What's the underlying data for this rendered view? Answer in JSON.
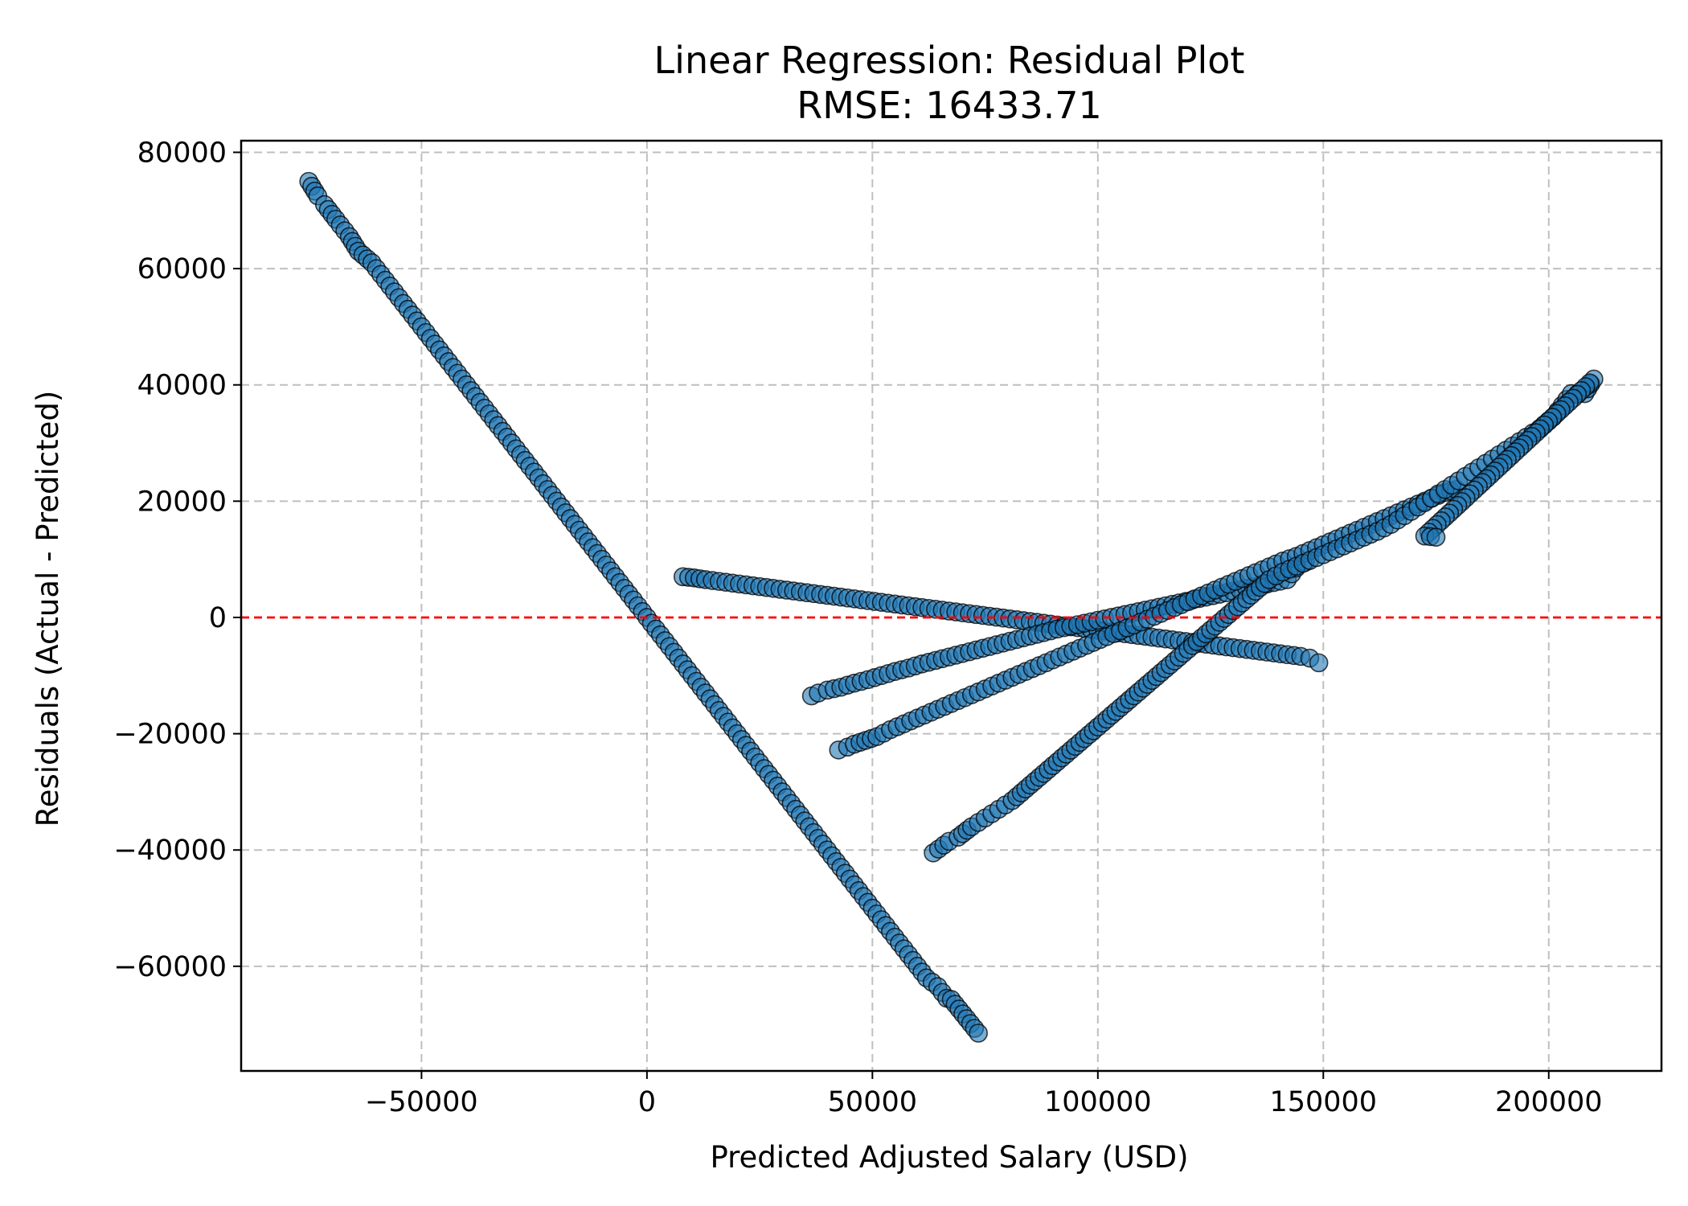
{
  "chart_data": {
    "type": "scatter",
    "title": "Linear Regression: Residual Plot",
    "subtitle": "RMSE: 16433.71",
    "xlabel": "Predicted Adjusted Salary (USD)",
    "ylabel": "Residuals (Actual - Predicted)",
    "xlim": [
      -90000,
      225000
    ],
    "ylim": [
      -78000,
      82000
    ],
    "xticks": [
      -50000,
      0,
      50000,
      100000,
      150000,
      200000
    ],
    "xtick_labels": [
      "−50000",
      "0",
      "50000",
      "100000",
      "150000",
      "200000"
    ],
    "yticks": [
      -60000,
      -40000,
      -20000,
      0,
      20000,
      40000,
      60000,
      80000
    ],
    "ytick_labels": [
      "−60000",
      "−40000",
      "−20000",
      "0",
      "20000",
      "40000",
      "60000",
      "80000"
    ],
    "grid": true,
    "reference_line": {
      "y": 0,
      "color": "#ff0000",
      "style": "dashed"
    },
    "marker_color": "#1f77b4",
    "series": [
      {
        "values": [
          [
            -75000,
            75000
          ],
          [
            -73000,
            72500
          ],
          [
            -71500,
            71000
          ],
          [
            -69000,
            68500
          ],
          [
            -68000,
            67500
          ],
          [
            -66000,
            65500
          ],
          [
            -64000,
            63000
          ],
          [
            -61000,
            61000
          ],
          [
            -58000,
            58000
          ],
          [
            -55000,
            55000
          ],
          [
            -52000,
            52000
          ],
          [
            -49000,
            49000
          ],
          [
            -46000,
            46000
          ],
          [
            -43000,
            43000
          ],
          [
            -40000,
            40000
          ],
          [
            -37000,
            37000
          ],
          [
            -34000,
            34000
          ],
          [
            -31000,
            31000
          ],
          [
            -28000,
            28000
          ],
          [
            -25000,
            25000
          ],
          [
            -22000,
            22000
          ],
          [
            -19000,
            19000
          ],
          [
            -16000,
            16000
          ],
          [
            -13000,
            13000
          ],
          [
            -10000,
            10000
          ],
          [
            -7000,
            7000
          ],
          [
            -4000,
            4000
          ],
          [
            -1000,
            1000
          ],
          [
            2000,
            -2000
          ],
          [
            5000,
            -5000
          ],
          [
            8000,
            -8000
          ],
          [
            11000,
            -11000
          ],
          [
            14000,
            -14000
          ],
          [
            17000,
            -17000
          ],
          [
            20000,
            -20000
          ],
          [
            23000,
            -23000
          ],
          [
            26000,
            -26000
          ],
          [
            29000,
            -29000
          ],
          [
            32000,
            -32000
          ],
          [
            35000,
            -35000
          ],
          [
            38000,
            -38000
          ],
          [
            41000,
            -41000
          ],
          [
            44000,
            -44000
          ],
          [
            47000,
            -47000
          ],
          [
            50000,
            -50000
          ],
          [
            53000,
            -53000
          ],
          [
            56000,
            -56000
          ],
          [
            59000,
            -59000
          ],
          [
            62000,
            -62000
          ],
          [
            64500,
            -63500
          ],
          [
            66500,
            -65500
          ],
          [
            67500,
            -65700
          ],
          [
            73500,
            -71500
          ]
        ]
      },
      {
        "values": [
          [
            8000,
            7000
          ],
          [
            10500,
            6800
          ],
          [
            13000,
            6500
          ],
          [
            16000,
            6200
          ],
          [
            19000,
            5900
          ],
          [
            22000,
            5600
          ],
          [
            25000,
            5300
          ],
          [
            28000,
            5000
          ],
          [
            31000,
            4700
          ],
          [
            34000,
            4400
          ],
          [
            37000,
            4100
          ],
          [
            40000,
            3800
          ],
          [
            43000,
            3500
          ],
          [
            46000,
            3200
          ],
          [
            49000,
            2900
          ],
          [
            52000,
            2600
          ],
          [
            55000,
            2300
          ],
          [
            58000,
            2000
          ],
          [
            61000,
            1700
          ],
          [
            64000,
            1400
          ],
          [
            67000,
            1100
          ],
          [
            70000,
            800
          ],
          [
            73000,
            500
          ],
          [
            76000,
            200
          ],
          [
            79000,
            -100
          ],
          [
            82000,
            -400
          ],
          [
            85000,
            -700
          ],
          [
            88000,
            -1000
          ],
          [
            91000,
            -1300
          ],
          [
            94000,
            -1600
          ],
          [
            97000,
            -1900
          ],
          [
            100000,
            -2200
          ],
          [
            103000,
            -2500
          ],
          [
            106000,
            -2800
          ],
          [
            109000,
            -3100
          ],
          [
            112000,
            -3400
          ],
          [
            115000,
            -3700
          ],
          [
            118000,
            -4000
          ],
          [
            121000,
            -4300
          ],
          [
            124000,
            -4600
          ],
          [
            127000,
            -4900
          ],
          [
            130000,
            -5200
          ],
          [
            133000,
            -5500
          ],
          [
            136000,
            -5800
          ],
          [
            139000,
            -6100
          ],
          [
            142000,
            -6400
          ],
          [
            145000,
            -6700
          ],
          [
            147000,
            -7000
          ],
          [
            149000,
            -7800
          ]
        ]
      },
      {
        "values": [
          [
            36500,
            -13500
          ],
          [
            38000,
            -13000
          ],
          [
            40000,
            -12500
          ],
          [
            43000,
            -12000
          ],
          [
            46000,
            -11300
          ],
          [
            49000,
            -10700
          ],
          [
            52000,
            -10000
          ],
          [
            55000,
            -9300
          ],
          [
            58000,
            -8700
          ],
          [
            61000,
            -8000
          ],
          [
            64000,
            -7400
          ],
          [
            67000,
            -6800
          ],
          [
            70000,
            -6200
          ],
          [
            73000,
            -5600
          ],
          [
            76000,
            -5000
          ],
          [
            79000,
            -4400
          ],
          [
            82000,
            -3800
          ],
          [
            85000,
            -3200
          ],
          [
            88000,
            -2600
          ],
          [
            91000,
            -2000
          ],
          [
            94000,
            -1500
          ],
          [
            97000,
            -1000
          ],
          [
            100000,
            -500
          ],
          [
            103000,
            0
          ],
          [
            106000,
            500
          ],
          [
            109000,
            1000
          ],
          [
            112000,
            1500
          ],
          [
            115000,
            2000
          ],
          [
            118000,
            2500
          ],
          [
            121000,
            3000
          ],
          [
            124000,
            3500
          ],
          [
            127000,
            4000
          ],
          [
            130000,
            4500
          ],
          [
            133000,
            5000
          ],
          [
            136000,
            5500
          ],
          [
            139000,
            6000
          ],
          [
            142000,
            6500
          ],
          [
            144000,
            8500
          ],
          [
            146000,
            9500
          ]
        ]
      },
      {
        "values": [
          [
            42500,
            -22800
          ],
          [
            44500,
            -22300
          ],
          [
            46000,
            -21800
          ],
          [
            51000,
            -20500
          ],
          [
            54000,
            -19300
          ],
          [
            57000,
            -18300
          ],
          [
            60000,
            -17300
          ],
          [
            63000,
            -16300
          ],
          [
            66000,
            -15300
          ],
          [
            69000,
            -14300
          ],
          [
            72000,
            -13300
          ],
          [
            75000,
            -12300
          ],
          [
            78000,
            -11300
          ],
          [
            81000,
            -10300
          ],
          [
            84000,
            -9300
          ],
          [
            87000,
            -8300
          ],
          [
            90000,
            -7300
          ],
          [
            93000,
            -6300
          ],
          [
            96000,
            -5300
          ],
          [
            99000,
            -4300
          ],
          [
            102000,
            -3300
          ],
          [
            105000,
            -2300
          ],
          [
            108000,
            -1300
          ],
          [
            111000,
            -300
          ],
          [
            114000,
            700
          ],
          [
            117000,
            1700
          ],
          [
            120000,
            2700
          ],
          [
            123000,
            3700
          ],
          [
            126000,
            4700
          ],
          [
            129000,
            5700
          ],
          [
            132000,
            6700
          ],
          [
            135000,
            7700
          ],
          [
            138000,
            8700
          ],
          [
            141000,
            9700
          ],
          [
            144000,
            10500
          ],
          [
            147000,
            11500
          ],
          [
            150000,
            12500
          ],
          [
            153000,
            13500
          ],
          [
            156000,
            14500
          ],
          [
            159000,
            15500
          ],
          [
            162000,
            16500
          ],
          [
            165000,
            17500
          ],
          [
            168000,
            18500
          ],
          [
            171000,
            19500
          ],
          [
            174000,
            20500
          ],
          [
            177000,
            21500
          ],
          [
            179500,
            22000
          ]
        ]
      },
      {
        "values": [
          [
            63500,
            -40500
          ],
          [
            67000,
            -38500
          ],
          [
            69000,
            -37800
          ],
          [
            72000,
            -36000
          ],
          [
            75000,
            -34500
          ],
          [
            78000,
            -33000
          ],
          [
            81000,
            -31500
          ],
          [
            84000,
            -29500
          ],
          [
            87000,
            -27500
          ],
          [
            90000,
            -25500
          ],
          [
            93000,
            -23500
          ],
          [
            96000,
            -21500
          ],
          [
            99000,
            -19500
          ],
          [
            102000,
            -17500
          ],
          [
            105000,
            -15500
          ],
          [
            108000,
            -13500
          ],
          [
            111000,
            -11500
          ],
          [
            114000,
            -9500
          ],
          [
            117000,
            -7500
          ],
          [
            120000,
            -5500
          ],
          [
            123000,
            -3500
          ],
          [
            126000,
            -1500
          ],
          [
            129000,
            500
          ],
          [
            132000,
            2500
          ],
          [
            135000,
            4500
          ],
          [
            138000,
            6500
          ],
          [
            141000,
            7800
          ],
          [
            144000,
            8800
          ],
          [
            147000,
            9800
          ],
          [
            150000,
            10800
          ],
          [
            153000,
            11800
          ],
          [
            156000,
            12800
          ],
          [
            159000,
            13800
          ],
          [
            162000,
            14800
          ],
          [
            165000,
            16000
          ],
          [
            168000,
            17500
          ],
          [
            171000,
            19000
          ],
          [
            174000,
            20500
          ],
          [
            177000,
            22000
          ],
          [
            180000,
            23500
          ],
          [
            183000,
            25000
          ],
          [
            186000,
            26500
          ],
          [
            189000,
            28000
          ],
          [
            192000,
            29500
          ],
          [
            195000,
            31000
          ],
          [
            198000,
            32500
          ],
          [
            201000,
            34500
          ],
          [
            203000,
            36500
          ],
          [
            205000,
            38500
          ],
          [
            208000,
            38500
          ],
          [
            210000,
            41000
          ],
          [
            172500,
            14000
          ],
          [
            175000,
            13800
          ]
        ]
      }
    ]
  }
}
